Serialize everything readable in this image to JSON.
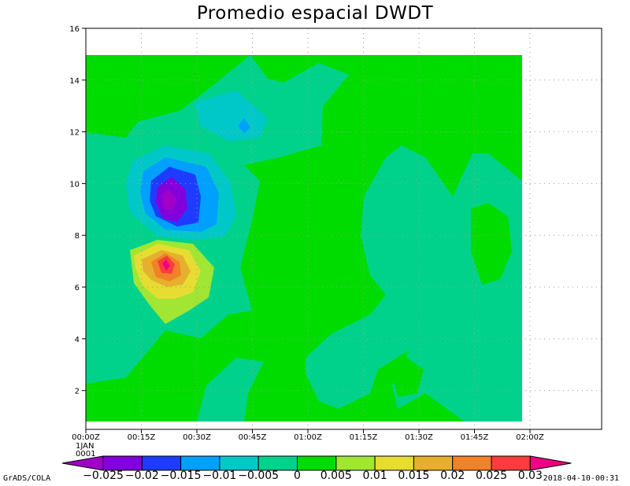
{
  "chart_data": {
    "type": "heatmap",
    "title": "Promedio espacial DWDT",
    "xlabel": "",
    "ylabel": "",
    "x_ticks": [
      "00:00Z",
      "00:15Z",
      "00:30Z",
      "00:45Z",
      "01:00Z",
      "01:15Z",
      "01:30Z",
      "01:45Z",
      "02:00Z"
    ],
    "x_date_label": [
      "1JAN",
      "0001"
    ],
    "y_ticks": [
      2,
      4,
      6,
      8,
      10,
      12,
      14,
      16
    ],
    "ylim": [
      0.5,
      16
    ],
    "grid": true,
    "colorbar": {
      "labels": [
        "−0.025",
        "−0.02",
        "−0.015",
        "−0.01",
        "−0.005",
        "0",
        "0.005",
        "0.01",
        "0.015",
        "0.02",
        "0.025",
        "0.03"
      ],
      "colors": [
        "#a000c8",
        "#8200dc",
        "#1e3cff",
        "#00a0ff",
        "#00c8c8",
        "#00d28c",
        "#00dc00",
        "#a0e632",
        "#e6dc32",
        "#e6af2d",
        "#f08228",
        "#fa3c3c",
        "#f00082"
      ]
    },
    "features": [
      {
        "name": "negative minimum",
        "center_time": "00:20Z",
        "center_y": 9.2,
        "min_value": -0.025
      },
      {
        "name": "positive maximum",
        "center_time": "00:20Z",
        "center_y": 6.6,
        "max_value": 0.03
      }
    ]
  },
  "footer": {
    "left": "GrADS/COLA",
    "right": "2018-04-10-00:31"
  }
}
